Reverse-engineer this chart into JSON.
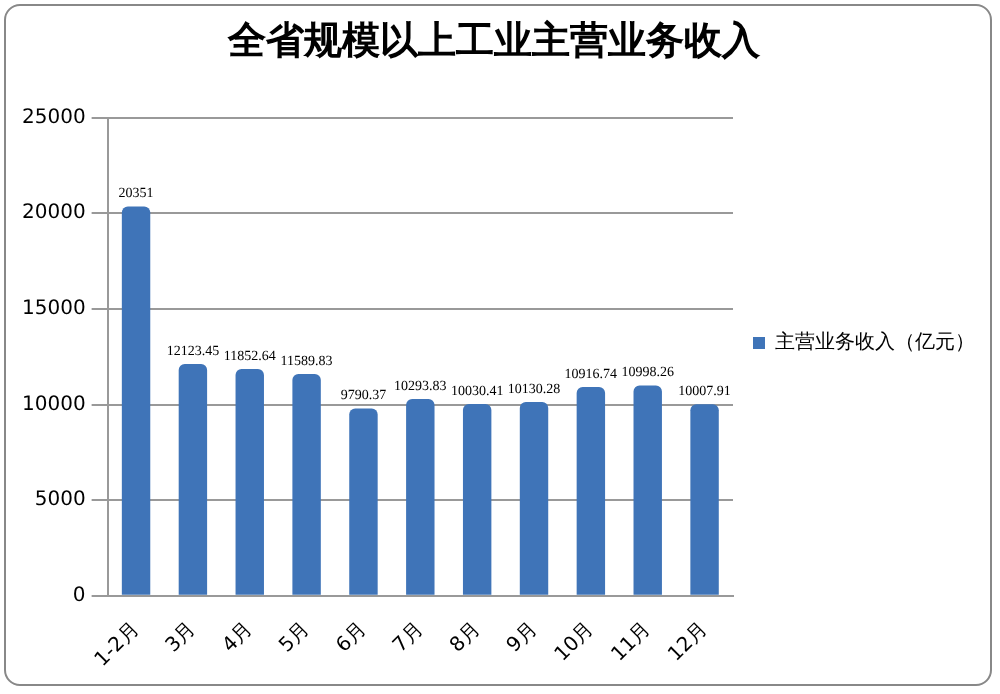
{
  "chart_data": {
    "type": "bar",
    "title": "全省规模以上工业主营业务收入",
    "categories": [
      "1-2月",
      "3月",
      "4月",
      "5月",
      "6月",
      "7月",
      "8月",
      "9月",
      "10月",
      "11月",
      "12月"
    ],
    "series": [
      {
        "name": "主营业务收入（亿元）",
        "color": "#3f74b8",
        "values": [
          20351,
          12123.45,
          11852.64,
          11589.83,
          9790.37,
          10293.83,
          10030.41,
          10130.28,
          10916.74,
          10998.26,
          10007.91
        ]
      }
    ],
    "ylim": [
      0,
      25000
    ],
    "yticks": [
      0,
      5000,
      10000,
      15000,
      20000,
      25000
    ],
    "grid": "y",
    "legend": "right",
    "data_labels": true
  }
}
